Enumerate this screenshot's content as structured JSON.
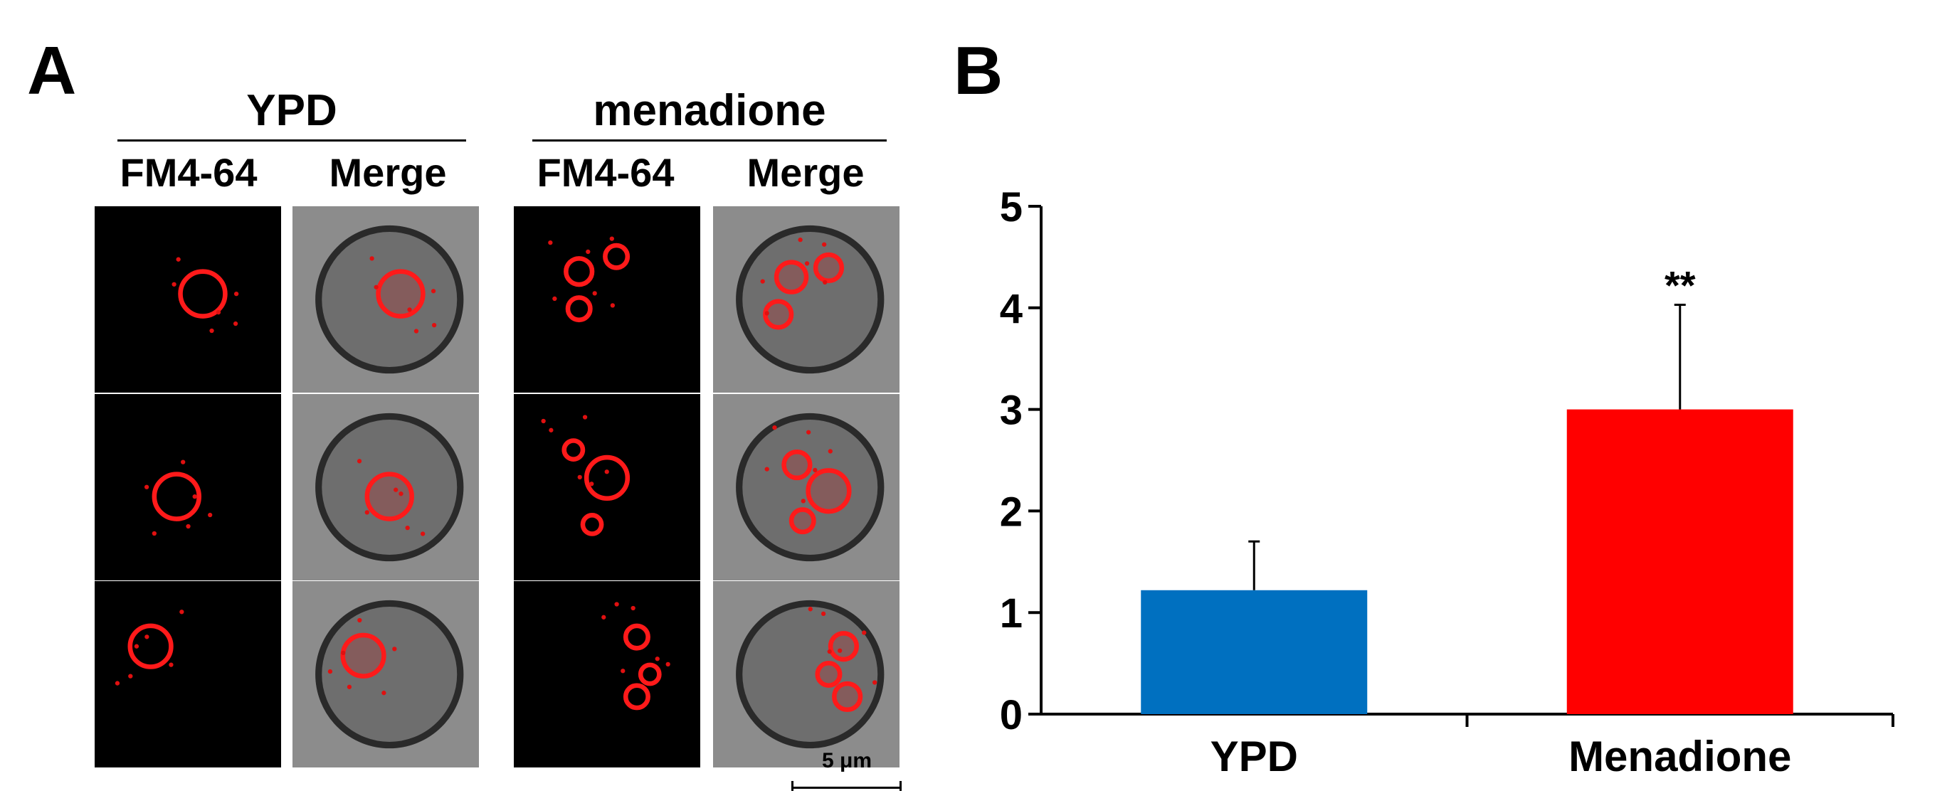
{
  "panel_a": {
    "letter": "A",
    "groups": [
      {
        "title": "YPD",
        "columns": [
          "FM4-64",
          "Merge"
        ]
      },
      {
        "title": "menadione",
        "columns": [
          "FM4-64",
          "Merge"
        ]
      }
    ],
    "scale_bar": "5 μm"
  },
  "panel_b": {
    "letter": "B",
    "chart_data": {
      "type": "bar",
      "categories": [
        "YPD",
        "Menadione"
      ],
      "values": [
        1.22,
        3.0
      ],
      "error_plus": [
        0.48,
        1.03
      ],
      "colors": [
        "#0070c0",
        "#ff0000"
      ],
      "yticks": [
        "0",
        "1",
        "2",
        "3",
        "4",
        "5"
      ],
      "ylim": [
        0,
        5
      ],
      "annotations": [
        {
          "category": "Menadione",
          "text": "**"
        }
      ],
      "xlabel": "",
      "ylabel": "",
      "grid": false
    }
  }
}
